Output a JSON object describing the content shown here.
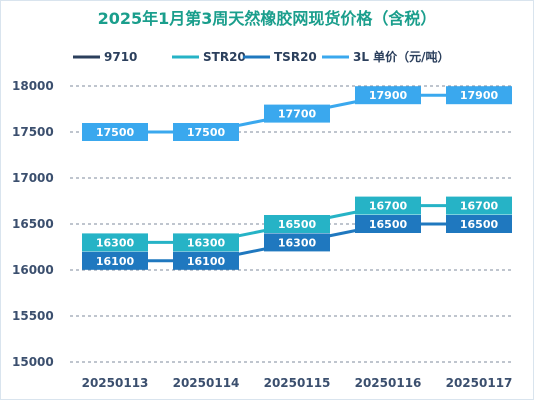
{
  "chart_data": {
    "type": "line",
    "title": "2025年1月第3周天然橡胶网现货价格（含税）",
    "categories": [
      "20250113",
      "20250114",
      "20250115",
      "20250116",
      "20250117"
    ],
    "ylim": [
      15000,
      18000
    ],
    "yticks": [
      15000,
      15500,
      16000,
      16500,
      17000,
      17500,
      18000
    ],
    "grid": true,
    "legend_position": "top",
    "series": [
      {
        "name": "9710",
        "color": "#2b3f5c",
        "values": [
          null,
          null,
          null,
          null,
          null
        ]
      },
      {
        "name": "STR20",
        "color": "#26b3c6",
        "values": [
          16300,
          16300,
          16500,
          16700,
          16700
        ]
      },
      {
        "name": "TSR20",
        "color": "#1f78bf",
        "values": [
          16100,
          16100,
          16300,
          16500,
          16500
        ]
      },
      {
        "name": "3L 单价（元/吨）",
        "color": "#3aa8ee",
        "values": [
          17500,
          17500,
          17700,
          17900,
          17900
        ]
      }
    ],
    "title_color": "#1a9e8c"
  }
}
